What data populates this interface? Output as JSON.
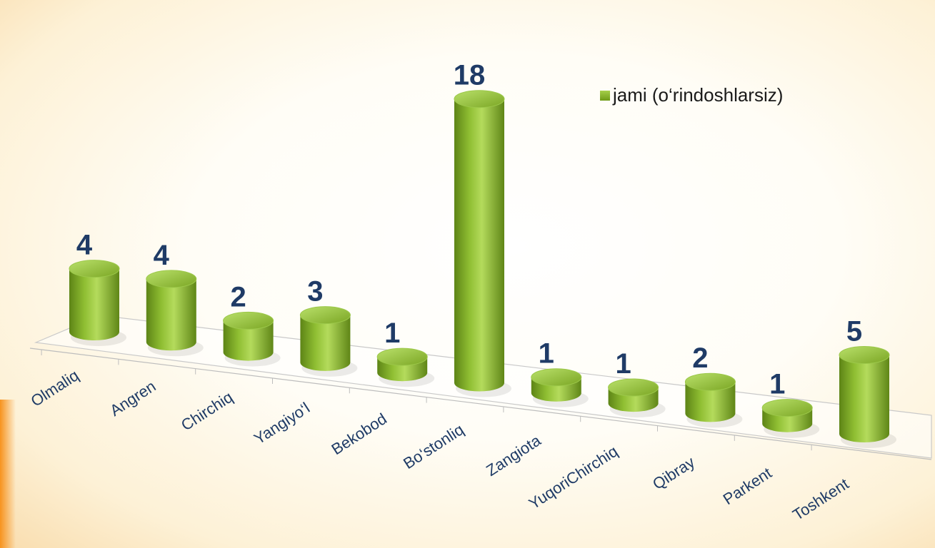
{
  "chart_data": {
    "type": "bar",
    "style": "3d-cylinder",
    "categories": [
      "Olmaliq",
      "Angren",
      "Chirchiq",
      "Yangiyo‘l",
      "Bekobod",
      "Bo‘stonliq",
      "Zangiota",
      "YuqoriChirchiq",
      "Qibray",
      "Parkent",
      "Toshkent"
    ],
    "series": [
      {
        "name": "jami (o‘rindoshlarsiz)",
        "values": [
          4,
          4,
          2,
          3,
          1,
          18,
          1,
          1,
          2,
          1,
          5
        ],
        "color": "#86b52c"
      }
    ],
    "data_labels": [
      "4",
      "4",
      "2",
      "3",
      "1",
      "18",
      "1",
      "1",
      "2",
      "1",
      "5"
    ],
    "legend_position": "top-right",
    "grid": false
  },
  "colors": {
    "bar_light": "#b4db5c",
    "bar_main": "#86b52c",
    "bar_dark": "#5d8416",
    "label": "#1f3b66"
  }
}
